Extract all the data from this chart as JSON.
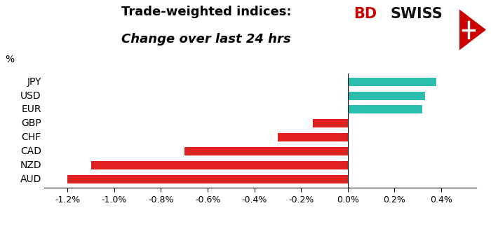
{
  "currencies": [
    "JPY",
    "USD",
    "EUR",
    "GBP",
    "CHF",
    "CAD",
    "NZD",
    "AUD"
  ],
  "values": [
    0.0038,
    0.0033,
    0.0032,
    -0.0015,
    -0.003,
    -0.007,
    -0.011,
    -0.012
  ],
  "colors": [
    "#2bbfb0",
    "#2bbfb0",
    "#2bbfb0",
    "#e02020",
    "#e02020",
    "#e02020",
    "#e02020",
    "#e02020"
  ],
  "title_line1": "Trade-weighted indices:",
  "title_line2": "Change over last 24 hrs",
  "ylabel_text": "%",
  "xlim": [
    -0.013,
    0.0055
  ],
  "xticks": [
    -0.012,
    -0.01,
    -0.008,
    -0.006,
    -0.004,
    -0.002,
    0.0,
    0.002,
    0.004
  ],
  "xtick_labels": [
    "-1.2%",
    "-1.0%",
    "-0.8%",
    "-0.6%",
    "-0.4%",
    "-0.2%",
    "0.0%",
    "0.2%",
    "0.4%"
  ],
  "bg_color": "#ffffff",
  "bar_height": 0.6,
  "title_fontsize": 13,
  "tick_fontsize": 9,
  "ylabel_fontsize": 10,
  "currency_fontsize": 10,
  "bd_color": "#cc0000",
  "swiss_color": "#111111"
}
